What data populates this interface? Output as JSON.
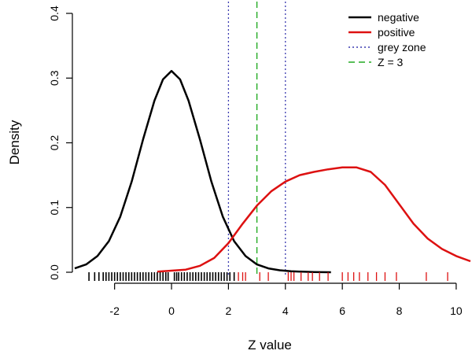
{
  "chart_data": {
    "type": "line",
    "title": "",
    "xlabel": "Z value",
    "ylabel": "Density",
    "xlim": [
      -3.4,
      10.5
    ],
    "ylim": [
      0,
      0.4
    ],
    "x_ticks": [
      -2,
      0,
      2,
      4,
      6,
      8,
      10
    ],
    "y_ticks": [
      0.0,
      0.1,
      0.2,
      0.3,
      0.4
    ],
    "y_tick_labels": [
      "0.0",
      "0.1",
      "0.2",
      "0.3",
      "0.4"
    ],
    "colors": {
      "negative": "#000000",
      "positive": "#dd1111",
      "grey_zone": "#3a3ab0",
      "z3": "#22aa22"
    },
    "series": [
      {
        "name": "negative",
        "key": "negative",
        "style": "solid",
        "x": [
          -3.4,
          -3.0,
          -2.6,
          -2.2,
          -1.8,
          -1.4,
          -1.0,
          -0.6,
          -0.3,
          0.0,
          0.3,
          0.6,
          1.0,
          1.4,
          1.8,
          2.2,
          2.6,
          3.0,
          3.4,
          3.8,
          4.2,
          4.6,
          5.0,
          5.6
        ],
        "values": [
          0.006,
          0.012,
          0.025,
          0.048,
          0.086,
          0.14,
          0.205,
          0.265,
          0.298,
          0.311,
          0.298,
          0.265,
          0.205,
          0.14,
          0.086,
          0.048,
          0.025,
          0.012,
          0.006,
          0.003,
          0.0015,
          0.0008,
          0.0004,
          0.0
        ]
      },
      {
        "name": "positive",
        "key": "positive",
        "style": "solid",
        "x": [
          -0.5,
          0.5,
          1.0,
          1.5,
          2.0,
          2.5,
          3.0,
          3.5,
          4.0,
          4.5,
          5.0,
          5.5,
          6.0,
          6.5,
          7.0,
          7.5,
          8.0,
          8.5,
          9.0,
          9.5,
          10.0,
          10.5
        ],
        "values": [
          0.001,
          0.004,
          0.01,
          0.022,
          0.045,
          0.075,
          0.103,
          0.125,
          0.14,
          0.15,
          0.155,
          0.159,
          0.162,
          0.162,
          0.155,
          0.135,
          0.105,
          0.075,
          0.052,
          0.036,
          0.025,
          0.017
        ]
      }
    ],
    "reference_lines": [
      {
        "name": "grey zone",
        "key": "grey_zone",
        "x": 2,
        "style": "dotted"
      },
      {
        "name": "grey zone",
        "key": "grey_zone",
        "x": 4,
        "style": "dotted"
      },
      {
        "name": "Z = 3",
        "key": "z3",
        "x": 3,
        "style": "dashed"
      }
    ],
    "legend": {
      "position": "top-right",
      "entries": [
        {
          "label": "negative",
          "key": "negative",
          "style": "solid"
        },
        {
          "label": "positive",
          "key": "positive",
          "style": "solid"
        },
        {
          "label": "grey zone",
          "key": "grey_zone",
          "style": "dotted"
        },
        {
          "label": "Z = 3",
          "key": "z3",
          "style": "dashed"
        }
      ]
    },
    "rug": {
      "negative": [
        -2.9,
        -2.7,
        -2.55,
        -2.4,
        -2.3,
        -2.2,
        -2.1,
        -2.0,
        -1.9,
        -1.8,
        -1.7,
        -1.6,
        -1.5,
        -1.4,
        -1.3,
        -1.2,
        -1.1,
        -1.0,
        -0.9,
        -0.8,
        -0.7,
        -0.6,
        -0.5,
        -0.4,
        -0.3,
        -0.2,
        -0.12,
        0.1,
        0.18,
        0.25,
        0.35,
        0.45,
        0.55,
        0.65,
        0.75,
        0.85,
        0.95,
        1.05,
        1.15,
        1.25,
        1.35,
        1.45,
        1.55,
        1.65,
        1.75,
        1.85,
        1.95,
        2.05,
        2.2
      ],
      "positive": [
        2.35,
        2.5,
        2.6,
        3.1,
        3.4,
        4.1,
        4.2,
        4.3,
        4.55,
        4.8,
        4.95,
        5.2,
        5.5,
        6.0,
        6.2,
        6.4,
        6.6,
        6.9,
        7.2,
        7.5,
        7.9,
        8.95,
        9.7
      ]
    }
  }
}
